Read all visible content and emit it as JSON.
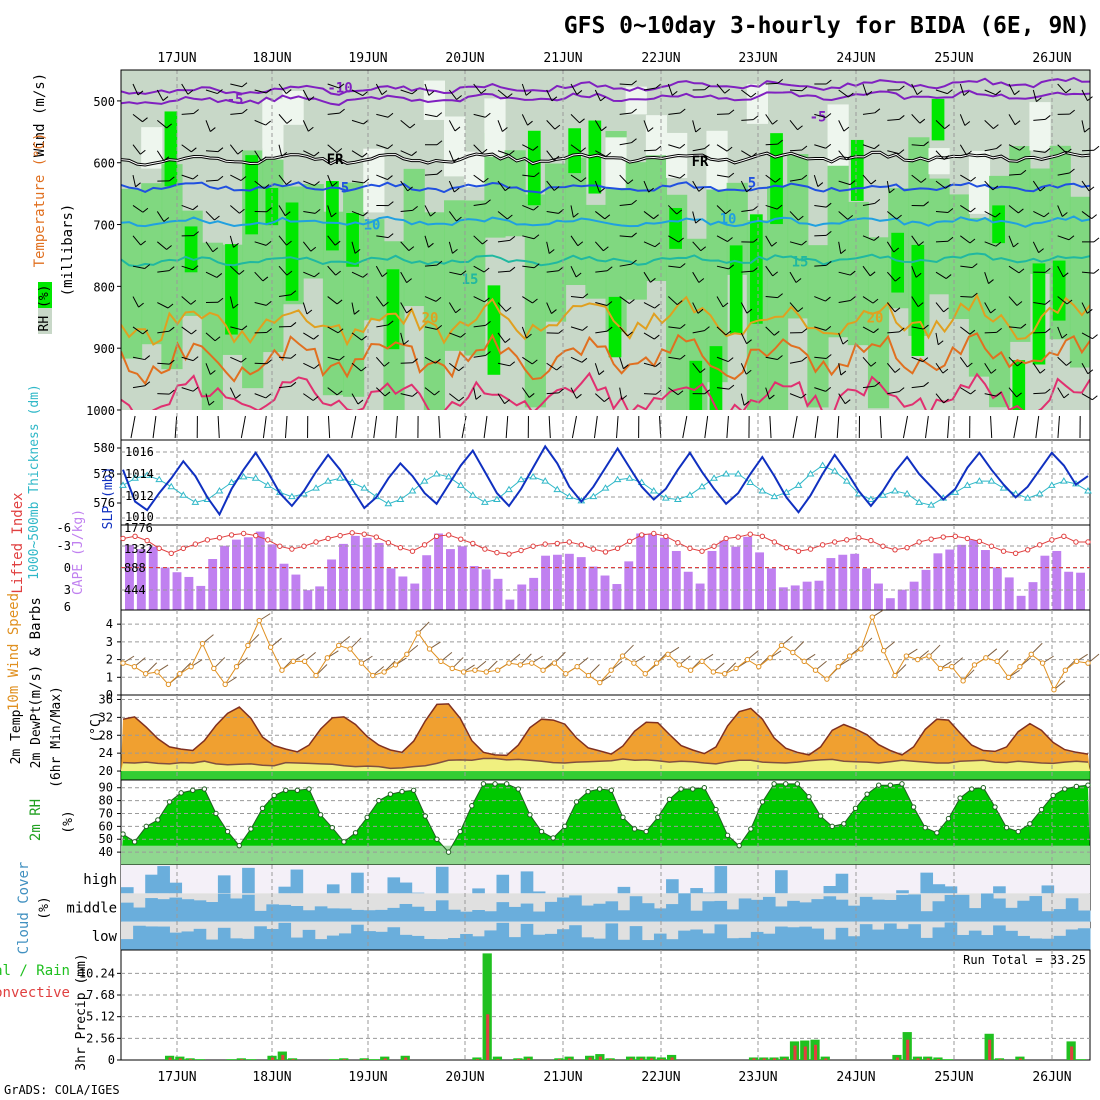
{
  "title": "GFS 0~10day 3-hourly for BIDA (6E, 9N)",
  "footer": "GrADS: COLA/IGES",
  "run_total_label": "Run Total = 33.25",
  "dates": [
    "17JUN",
    "18JUN",
    "19JUN",
    "20JUN",
    "21JUN",
    "22JUN",
    "23JUN",
    "24JUN",
    "25JUN",
    "26JUN"
  ],
  "colors": {
    "rh_light": "#c8d8c8",
    "rh_mid": "#78d878",
    "rh_dark": "#00e800",
    "cape_bar": "#c080f0",
    "li_line": "#e04040",
    "slp_line": "#1030c0",
    "thick_line": "#30b8c8",
    "wind_line": "#e09020",
    "temp_fill": "#f0a030",
    "temp_peak": "#e04000",
    "dew_fill": "#f0f080",
    "rh2m_fill": "#00c800",
    "cloud_blue": "#6aaedc",
    "cloud_gray": "#e0e0e0",
    "precip_total": "#20c020",
    "precip_conv": "#e04040"
  },
  "chart_data": [
    {
      "type": "contour",
      "panel": "upper-air",
      "ylabel_parts": [
        "RH (%)",
        "Temperature (°C)",
        "Wind (m/s)"
      ],
      "yunit": "(millibars)",
      "yticks": [
        "500",
        "600",
        "700",
        "800",
        "900",
        "1000"
      ],
      "contour_labels": {
        "temperature": [
          "-10",
          "-5",
          "FR",
          "FR",
          "5",
          "-5",
          "5",
          "10",
          "10",
          "15",
          "15",
          "20",
          "20"
        ]
      }
    },
    {
      "type": "line",
      "panel": "slp-thickness",
      "ylabel_left": "1000~500mb Thickness (dm)",
      "ylabel_right": "SLP (mb)",
      "yticks_left": [
        "580",
        "578",
        "576"
      ],
      "yticks_right": [
        "1016",
        "1014",
        "1012",
        "1010"
      ],
      "series": [
        {
          "name": "SLP",
          "values": [
            1014.2,
            1011.2,
            1010.4,
            1012.0,
            1013.4,
            1015.0,
            1013.6,
            1011.6,
            1010.0,
            1012.4,
            1014.2,
            1015.8,
            1014.0,
            1012.0,
            1010.8,
            1012.2,
            1014.0,
            1015.6,
            1014.2,
            1012.4,
            1010.6,
            1011.6,
            1013.4,
            1014.8,
            1013.6,
            1012.0,
            1011.0,
            1012.8,
            1014.6,
            1016.0,
            1014.0,
            1012.0,
            1010.8,
            1012.4,
            1014.4,
            1016.4,
            1014.8,
            1012.6,
            1011.2,
            1012.6,
            1014.4,
            1016.2,
            1014.4,
            1012.6,
            1011.4,
            1012.4,
            1014.2,
            1015.8,
            1014.0,
            1012.4,
            1011.0,
            1012.0,
            1013.8,
            1015.4,
            1013.6,
            1011.6,
            1010.2,
            1011.8,
            1013.8,
            1015.6,
            1014.0,
            1012.2,
            1010.8,
            1012.2,
            1014.0,
            1015.4,
            1013.8,
            1012.6,
            1011.4,
            1012.4,
            1014.4,
            1015.8,
            1014.2,
            1012.8,
            1011.6,
            1012.6,
            1014.2,
            1015.8,
            1014.6,
            1012.8,
            1013.6
          ]
        },
        {
          "name": "Thickness",
          "values": [
            577.8,
            578.3,
            578.5,
            578.2,
            577.7,
            577.1,
            576.6,
            576.8,
            577.4,
            578.0,
            578.4,
            578.3,
            577.8,
            577.3,
            577.0,
            577.2,
            577.6,
            578.1,
            578.3,
            578.0,
            577.6,
            577.0,
            576.5,
            576.8,
            577.4,
            578.1,
            578.6,
            578.4,
            577.8,
            577.1,
            576.6,
            576.8,
            577.5,
            578.2,
            578.4,
            578.1,
            577.5,
            577.0,
            576.7,
            577.0,
            577.6,
            578.2,
            578.3,
            578.0,
            577.4,
            576.9,
            576.8,
            577.1,
            577.7,
            578.3,
            578.6,
            578.6,
            578.0,
            577.4,
            577.0,
            577.3,
            577.8,
            578.6,
            579.2,
            578.8,
            578.1,
            577.2,
            576.8,
            577.1,
            577.4,
            577.2,
            576.6,
            576.4,
            576.9,
            577.3,
            577.8,
            578.1,
            578.1,
            577.6,
            577.2,
            576.9,
            577.2,
            577.8,
            578.1,
            577.9,
            577.4
          ]
        }
      ]
    },
    {
      "type": "bar",
      "panel": "cape-li",
      "ylabel_left": "Lifted Index",
      "ylabel_right": "CAPE (J/kg)",
      "yticks_left": [
        "-6",
        "-3",
        "0",
        "3",
        "6"
      ],
      "yticks_right": [
        "1776",
        "1332",
        "888",
        "444"
      ],
      "series": [
        {
          "name": "CAPE",
          "values": [
            1380,
            1290,
            1340,
            900,
            800,
            700,
            510,
            1080,
            1360,
            1490,
            1540,
            1660,
            1390,
            980,
            750,
            420,
            500,
            1070,
            1400,
            1570,
            1530,
            1420,
            880,
            710,
            560,
            1160,
            1620,
            1290,
            1350,
            930,
            860,
            660,
            220,
            540,
            680,
            1150,
            1170,
            1190,
            1120,
            920,
            730,
            550,
            1030,
            1620,
            1600,
            1530,
            1250,
            810,
            560,
            1250,
            1470,
            1340,
            1550,
            1220,
            880,
            480,
            520,
            600,
            620,
            1100,
            1170,
            1190,
            880,
            560,
            250,
            430,
            600,
            850,
            1200,
            1280,
            1380,
            1480,
            1270,
            900,
            690,
            300,
            590,
            1150,
            1250,
            810,
            790
          ]
        },
        {
          "name": "Lifted Index",
          "values": [
            -4.1,
            -4.4,
            -3.8,
            -2.7,
            -2.0,
            -2.7,
            -3.3,
            -3.9,
            -4.2,
            -4.6,
            -4.8,
            -4.5,
            -3.9,
            -3.0,
            -2.6,
            -3.0,
            -3.6,
            -4.1,
            -4.5,
            -4.9,
            -4.7,
            -4.3,
            -3.5,
            -2.8,
            -2.3,
            -3.2,
            -4.4,
            -4.6,
            -4.0,
            -3.4,
            -2.6,
            -2.1,
            -1.9,
            -2.4,
            -3.0,
            -3.3,
            -3.4,
            -3.6,
            -3.2,
            -2.6,
            -2.2,
            -2.7,
            -3.7,
            -4.6,
            -4.8,
            -4.4,
            -3.5,
            -2.7,
            -2.3,
            -3.0,
            -4.1,
            -4.3,
            -4.7,
            -4.4,
            -3.6,
            -2.8,
            -2.3,
            -2.6,
            -3.2,
            -3.6,
            -3.9,
            -4.2,
            -3.8,
            -3.0,
            -2.5,
            -2.8,
            -3.6,
            -4.0,
            -4.3,
            -4.4,
            -4.1,
            -3.7,
            -3.0,
            -2.3,
            -2.0,
            -2.5,
            -3.2,
            -3.9,
            -4.4,
            -3.6,
            -3.6
          ]
        }
      ]
    },
    {
      "type": "line",
      "panel": "wind10m",
      "ylabel": [
        "10m Wind Speed",
        "(m/s) & Barbs"
      ],
      "yticks": [
        "4",
        "3",
        "2",
        "1",
        "0"
      ],
      "series": [
        {
          "name": "10m Wind Speed",
          "values": [
            1.8,
            1.6,
            1.2,
            1.3,
            0.6,
            1.2,
            1.6,
            2.9,
            1.5,
            0.6,
            1.6,
            2.8,
            4.2,
            2.7,
            1.4,
            1.9,
            1.9,
            1.1,
            2.1,
            2.8,
            2.6,
            1.8,
            1.1,
            1.3,
            1.7,
            2.3,
            3.5,
            2.6,
            1.9,
            1.5,
            1.3,
            1.4,
            1.3,
            1.4,
            1.8,
            1.7,
            1.8,
            1.4,
            1.8,
            1.2,
            1.6,
            1.1,
            0.7,
            1.4,
            2.2,
            1.8,
            1.2,
            1.8,
            2.3,
            1.7,
            1.4,
            1.9,
            1.3,
            1.2,
            1.5,
            2.0,
            1.6,
            2.1,
            2.8,
            2.4,
            1.9,
            1.4,
            0.9,
            1.6,
            2.2,
            2.6,
            4.4,
            2.5,
            1.1,
            2.2,
            2.0,
            2.2,
            1.5,
            1.6,
            0.8,
            1.7,
            2.1,
            1.9,
            1.0,
            1.6,
            2.3,
            1.8,
            0.3,
            1.4,
            1.9,
            1.8
          ]
        }
      ]
    },
    {
      "type": "area",
      "panel": "temp2m",
      "ylabel": [
        "2m Temp",
        "2m DewPt",
        "(6hr Min/Max)"
      ],
      "yunit": "(°C)",
      "yticks": [
        "36",
        "32",
        "28",
        "24",
        "20"
      ],
      "series": [
        {
          "name": "2m Temp",
          "values": [
            31.6,
            32.1,
            29.8,
            27.2,
            25.4,
            24.9,
            24.6,
            26.8,
            30.2,
            32.9,
            34.3,
            31.8,
            27.6,
            25.7,
            24.9,
            24.3,
            25.8,
            29.4,
            31.9,
            32.1,
            30.4,
            27.7,
            25.8,
            24.7,
            24.2,
            26.7,
            31.2,
            34.9,
            35.0,
            31.8,
            26.8,
            24.2,
            23.6,
            23.5,
            25.8,
            29.7,
            31.6,
            31.4,
            30.5,
            27.4,
            25.2,
            24.5,
            23.8,
            25.6,
            28.9,
            30.9,
            30.8,
            28.2,
            25.7,
            24.7,
            23.9,
            25.4,
            30.1,
            33.3,
            34.0,
            31.6,
            27.4,
            25.1,
            24.2,
            23.6,
            25.4,
            29.1,
            30.4,
            29.4,
            28.1,
            25.9,
            24.6,
            23.6,
            25.4,
            29.3,
            31.6,
            31.4,
            28.5,
            25.8,
            24.6,
            24.4,
            25.4,
            28.8,
            30.6,
            29.1,
            26.4,
            24.8,
            24.2,
            23.8
          ]
        },
        {
          "name": "2m DewPt",
          "values": [
            21.9,
            21.8,
            22.0,
            21.7,
            21.6,
            21.9,
            21.8,
            22.2,
            21.6,
            21.4,
            21.5,
            21.6,
            21.3,
            21.2,
            21.9,
            21.8,
            21.7,
            21.6,
            21.5,
            21.2,
            21.0,
            21.1,
            21.0,
            20.6,
            20.7,
            21.0,
            21.2,
            21.7,
            22.4,
            22.5,
            22.4,
            22.8,
            22.8,
            22.5,
            22.6,
            22.4,
            22.2,
            21.9,
            21.8,
            22.0,
            22.1,
            22.2,
            22.3,
            22.7,
            22.4,
            22.5,
            22.3,
            22.0,
            22.2,
            22.1,
            21.8,
            21.6,
            22.1,
            22.4,
            22.4,
            22.0,
            21.9,
            21.8,
            22.0,
            22.3,
            22.5,
            22.6,
            22.2,
            22.1,
            22.0,
            21.8,
            22.1,
            22.4,
            22.2,
            22.0,
            21.8,
            21.8,
            22.2,
            22.3,
            22.4,
            22.0,
            21.9,
            22.2,
            22.0,
            21.8,
            21.7,
            22.0,
            22.2,
            22.0
          ]
        }
      ]
    },
    {
      "type": "area",
      "panel": "rh2m",
      "ylabel": "2m RH",
      "yunit": "(%)",
      "yticks": [
        "90",
        "80",
        "70",
        "60",
        "50",
        "40"
      ],
      "series": [
        {
          "name": "2m RH",
          "values": [
            54,
            48,
            60,
            65,
            79,
            86,
            88,
            89,
            70,
            56,
            45,
            58,
            74,
            84,
            88,
            88,
            89,
            69,
            59,
            48,
            55,
            67,
            80,
            85,
            87,
            88,
            68,
            50,
            40,
            56,
            76,
            93,
            93,
            93,
            89,
            69,
            56,
            51,
            60,
            79,
            87,
            89,
            88,
            67,
            58,
            56,
            67,
            81,
            89,
            89,
            90,
            73,
            53,
            45,
            58,
            79,
            93,
            93,
            93,
            83,
            68,
            60,
            62,
            74,
            85,
            92,
            92,
            93,
            75,
            59,
            55,
            66,
            82,
            89,
            90,
            75,
            59,
            56,
            62,
            73,
            84,
            89,
            91,
            92
          ]
        }
      ]
    },
    {
      "type": "bar",
      "panel": "cloud-cover",
      "ylabel": "Cloud Cover",
      "yunit": "(%)",
      "levels": [
        "high",
        "middle",
        "low"
      ]
    },
    {
      "type": "bar",
      "panel": "precip",
      "ylabel": [
        "Total / Rain",
        "Convective"
      ],
      "yunit": "3hr Precip (mm)",
      "yticks": [
        "10.24",
        "7.68",
        "5.12",
        "2.56",
        "0"
      ],
      "run_total": 33.25,
      "series": [
        {
          "name": "Total",
          "values": [
            0,
            0,
            0,
            0,
            0.5,
            0.4,
            0.2,
            0.1,
            0,
            0,
            0.1,
            0.2,
            0.1,
            0,
            0.5,
            1.0,
            0.2,
            0,
            0,
            0,
            0.1,
            0.2,
            0,
            0.2,
            0.1,
            0.4,
            0,
            0.5,
            0,
            0,
            0,
            0,
            0,
            0,
            0.3,
            12.6,
            0.4,
            0,
            0.2,
            0.4,
            0,
            0,
            0.2,
            0.4,
            0,
            0.5,
            0.7,
            0.2,
            0,
            0.4,
            0.4,
            0.4,
            0.3,
            0.6,
            0,
            0,
            0,
            0,
            0,
            0,
            0,
            0.3,
            0.3,
            0.3,
            0.4,
            2.2,
            2.3,
            2.4,
            0.4,
            0,
            0,
            0,
            0,
            0,
            0,
            0.6,
            3.3,
            0.4,
            0.4,
            0.3,
            0.1,
            0,
            0,
            0,
            3.1,
            0.2,
            0,
            0.4,
            0,
            0,
            0,
            0,
            2.2,
            0.1
          ]
        },
        {
          "name": "Convective",
          "values": [
            0,
            0,
            0,
            0,
            0.3,
            0.2,
            0.1,
            0,
            0,
            0,
            0,
            0.1,
            0,
            0,
            0.3,
            0.6,
            0.1,
            0,
            0,
            0,
            0,
            0.1,
            0,
            0.1,
            0,
            0.2,
            0,
            0.3,
            0,
            0,
            0,
            0,
            0,
            0,
            0.1,
            5.4,
            0.1,
            0,
            0.1,
            0.2,
            0,
            0,
            0.1,
            0.2,
            0,
            0.3,
            0.4,
            0.1,
            0,
            0.2,
            0.2,
            0.2,
            0.1,
            0.3,
            0,
            0,
            0,
            0,
            0,
            0,
            0,
            0.2,
            0.2,
            0.2,
            0.2,
            1.7,
            1.6,
            1.8,
            0.2,
            0,
            0,
            0,
            0,
            0,
            0,
            0.3,
            2.4,
            0.2,
            0.2,
            0.1,
            0,
            0,
            0,
            0,
            2.4,
            0.1,
            0,
            0.2,
            0,
            0,
            0,
            0,
            1.6,
            0
          ]
        }
      ]
    }
  ]
}
